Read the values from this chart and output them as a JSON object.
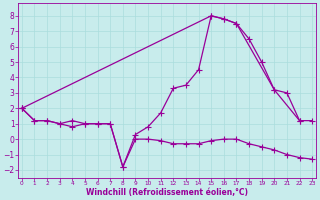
{
  "bg_color": "#c8ecec",
  "line_color": "#990099",
  "grid_color": "#aadddd",
  "xlabel": "Windchill (Refroidissement éolien,°C)",
  "xlim": [
    -0.3,
    23.3
  ],
  "ylim": [
    -2.5,
    8.8
  ],
  "xticks": [
    0,
    1,
    2,
    3,
    4,
    5,
    6,
    7,
    8,
    9,
    10,
    11,
    12,
    13,
    14,
    15,
    16,
    17,
    18,
    19,
    20,
    21,
    22,
    23
  ],
  "yticks": [
    -2,
    -1,
    0,
    1,
    2,
    3,
    4,
    5,
    6,
    7,
    8
  ],
  "line1_x": [
    0,
    1,
    2,
    3,
    4,
    5,
    6,
    7,
    8,
    9,
    10,
    11,
    12,
    13,
    14,
    15,
    16,
    17,
    18,
    19,
    20,
    21,
    22
  ],
  "line1_y": [
    2,
    1.2,
    1.2,
    1.0,
    1.2,
    1.0,
    1.0,
    1.0,
    -1.8,
    0.3,
    0.8,
    1.7,
    3.3,
    3.5,
    4.5,
    8.0,
    7.8,
    7.5,
    6.5,
    5.0,
    3.2,
    3.0,
    1.2
  ],
  "line2_x": [
    0,
    1,
    2,
    3,
    4,
    5,
    6,
    7,
    8,
    9,
    10,
    11,
    12,
    13,
    14,
    15,
    16,
    17,
    18,
    19,
    20,
    21,
    22,
    23
  ],
  "line2_y": [
    2,
    1.2,
    1.2,
    1.0,
    0.8,
    1.0,
    1.0,
    1.0,
    -1.8,
    0.0,
    0.0,
    -0.1,
    -0.3,
    -0.3,
    -0.3,
    -0.1,
    0.0,
    0.0,
    -0.3,
    -0.5,
    -0.7,
    -1.0,
    -1.2,
    -1.3
  ],
  "line3_x": [
    0,
    15,
    16,
    17,
    20,
    22,
    23
  ],
  "line3_y": [
    2,
    8.0,
    7.8,
    7.5,
    3.2,
    1.2,
    1.2
  ]
}
